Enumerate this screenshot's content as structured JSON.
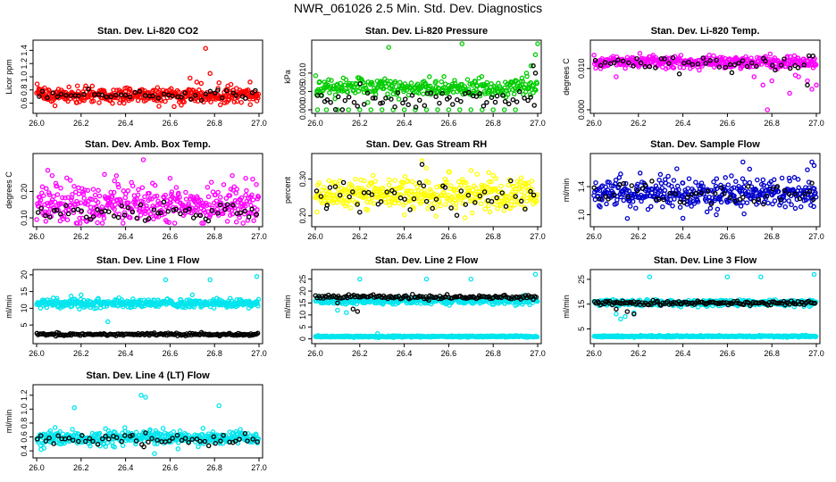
{
  "page": {
    "title": "NWR_061026  2.5 Min. Std. Dev. Diagnostics"
  },
  "chart_data": [
    {
      "type": "scatter",
      "title": "Stan. Dev. Li-820 CO2",
      "ylabel": "Licor ppm",
      "color": "#ff0000",
      "ref_color": "#000000",
      "xlim": [
        26.0,
        27.0
      ],
      "ylim": [
        0.5,
        1.5
      ],
      "xticks": [
        "26.0",
        "26.2",
        "26.4",
        "26.6",
        "26.8",
        "27.0"
      ],
      "yticks": [
        "0.6",
        "0.8",
        "1.0",
        "1.2",
        "1.4"
      ],
      "series": [
        {
          "base": 0.72,
          "spread": 0.06,
          "density": 1.0,
          "points": [
            [
              26.01,
              0.82
            ],
            [
              26.1,
              0.68
            ],
            [
              26.25,
              0.86
            ],
            [
              26.4,
              0.78
            ],
            [
              26.55,
              0.7
            ],
            [
              26.69,
              0.98
            ],
            [
              26.72,
              0.92
            ],
            [
              26.74,
              0.9
            ],
            [
              26.76,
              1.43
            ],
            [
              26.78,
              1.05
            ],
            [
              26.82,
              0.91
            ],
            [
              26.86,
              0.86
            ],
            [
              26.96,
              0.92
            ],
            [
              26.99,
              0.73
            ]
          ]
        },
        {
          "base": 0.72,
          "spread": 0.04,
          "density": 0.12,
          "ref": true,
          "points": []
        }
      ]
    },
    {
      "type": "scatter",
      "title": "Stan. Dev. Li-820 Pressure",
      "ylabel": "kPa",
      "color": "#00cc00",
      "ref_color": "#000000",
      "xlim": [
        26.0,
        27.0
      ],
      "ylim": [
        0.0,
        0.018
      ],
      "xticks": [
        "26.0",
        "26.2",
        "26.4",
        "26.6",
        "26.8",
        "27.0"
      ],
      "yticks": [
        "0.000",
        "0.005",
        "0.010"
      ],
      "series": [
        {
          "base": 0.006,
          "spread": 0.0012,
          "density": 0.8,
          "points": [
            [
              26.01,
              0.0
            ],
            [
              26.05,
              0.0
            ],
            [
              26.1,
              0.0
            ],
            [
              26.15,
              0.0
            ],
            [
              26.2,
              0.0
            ],
            [
              26.25,
              0.0
            ],
            [
              26.3,
              0.0
            ],
            [
              26.35,
              0.0
            ],
            [
              26.4,
              0.0
            ],
            [
              26.45,
              0.0
            ],
            [
              26.5,
              0.0
            ],
            [
              26.55,
              0.0
            ],
            [
              26.6,
              0.0
            ],
            [
              26.65,
              0.0
            ],
            [
              26.7,
              0.0
            ],
            [
              26.75,
              0.0
            ],
            [
              26.8,
              0.0
            ],
            [
              26.85,
              0.0
            ],
            [
              26.9,
              0.0
            ],
            [
              26.33,
              0.017
            ],
            [
              26.66,
              0.018
            ],
            [
              26.9,
              0.008
            ],
            [
              26.95,
              0.01
            ],
            [
              26.97,
              0.012
            ],
            [
              26.99,
              0.015
            ],
            [
              27.0,
              0.018
            ]
          ]
        },
        {
          "base": 0.003,
          "spread": 0.0015,
          "density": 0.15,
          "ref": true,
          "points": [
            [
              26.98,
              0.012
            ],
            [
              26.99,
              0.01
            ]
          ]
        }
      ]
    },
    {
      "type": "scatter",
      "title": "Stan. Dev. Li-820 Temp.",
      "ylabel": "degrees C",
      "color": "#ff00ff",
      "ref_color": "#000000",
      "xlim": [
        26.0,
        27.0
      ],
      "ylim": [
        0.0,
        0.016
      ],
      "xticks": [
        "26.0",
        "26.2",
        "26.4",
        "26.6",
        "26.8",
        "27.0"
      ],
      "yticks": [
        "0.000",
        "0.010"
      ],
      "series": [
        {
          "base": 0.0115,
          "spread": 0.0007,
          "density": 1.0,
          "points": [
            [
              26.03,
              0.01
            ],
            [
              26.1,
              0.008
            ],
            [
              26.66,
              0.01
            ],
            [
              26.72,
              0.008
            ],
            [
              26.74,
              0.011
            ],
            [
              26.76,
              0.006
            ],
            [
              26.78,
              0.0
            ],
            [
              26.8,
              0.007
            ],
            [
              26.84,
              0.011
            ],
            [
              26.88,
              0.004
            ],
            [
              26.92,
              0.008
            ],
            [
              26.96,
              0.007
            ],
            [
              26.98,
              0.005
            ],
            [
              27.0,
              0.006
            ]
          ]
        },
        {
          "base": 0.0112,
          "spread": 0.0008,
          "density": 0.12,
          "ref": true,
          "points": [
            [
              26.62,
              0.009
            ],
            [
              26.96,
              0.006
            ]
          ]
        }
      ]
    },
    {
      "type": "scatter",
      "title": "Stan. Dev. Amb. Box Temp.",
      "ylabel": "degrees C",
      "color": "#ff00ff",
      "ref_color": "#000000",
      "xlim": [
        26.0,
        27.0
      ],
      "ylim": [
        0.08,
        0.33
      ],
      "xticks": [
        "26.0",
        "26.2",
        "26.4",
        "26.6",
        "26.8",
        "27.0"
      ],
      "yticks": [
        "0.10",
        "0.20"
      ],
      "series": [
        {
          "base": 0.15,
          "spread": 0.035,
          "density": 1.0,
          "points": [
            [
              26.05,
              0.28
            ],
            [
              26.07,
              0.26
            ],
            [
              26.48,
              0.32
            ],
            [
              26.6,
              0.25
            ],
            [
              26.35,
              0.24
            ],
            [
              26.88,
              0.26
            ],
            [
              26.94,
              0.25
            ]
          ]
        },
        {
          "base": 0.12,
          "spread": 0.015,
          "density": 0.14,
          "ref": true,
          "points": []
        }
      ]
    },
    {
      "type": "scatter",
      "title": "Stan. Dev. Gas Stream RH",
      "ylabel": "percent",
      "color": "#ffff00",
      "ref_color": "#000000",
      "xlim": [
        26.0,
        27.0
      ],
      "ylim": [
        0.18,
        0.36
      ],
      "xticks": [
        "26.0",
        "26.2",
        "26.4",
        "26.6",
        "26.8",
        "27.0"
      ],
      "yticks": [
        "0.20",
        "0.30"
      ],
      "series": [
        {
          "base": 0.26,
          "spread": 0.022,
          "density": 1.0,
          "points": [
            [
              26.48,
              0.35
            ],
            [
              26.5,
              0.33
            ],
            [
              26.6,
              0.32
            ],
            [
              26.26,
              0.31
            ],
            [
              26.8,
              0.31
            ]
          ]
        },
        {
          "base": 0.25,
          "spread": 0.02,
          "density": 0.12,
          "ref": true,
          "points": [
            [
              26.48,
              0.34
            ],
            [
              26.2,
              0.21
            ],
            [
              26.05,
              0.22
            ]
          ]
        }
      ]
    },
    {
      "type": "scatter",
      "title": "Stan. Dev. Sample Flow",
      "ylabel": "ml/min",
      "color": "#0000cc",
      "ref_color": "#000000",
      "xlim": [
        26.0,
        27.0
      ],
      "ylim": [
        0.88,
        1.82
      ],
      "xticks": [
        "26.0",
        "26.2",
        "26.4",
        "26.6",
        "26.8",
        "27.0"
      ],
      "yticks": [
        "1.0",
        "1.4"
      ],
      "series": [
        {
          "base": 1.3,
          "spread": 0.1,
          "density": 1.0,
          "points": [
            [
              26.67,
              1.75
            ],
            [
              26.7,
              1.65
            ],
            [
              26.98,
              1.75
            ],
            [
              26.99,
              1.7
            ],
            [
              26.96,
              1.64
            ],
            [
              26.12,
              1.58
            ],
            [
              26.4,
              1.45
            ],
            [
              26.55,
              1.0
            ],
            [
              26.4,
              0.95
            ]
          ]
        },
        {
          "base": 1.3,
          "spread": 0.08,
          "density": 0.12,
          "ref": true,
          "points": [
            [
              26.98,
              1.45
            ]
          ]
        }
      ]
    },
    {
      "type": "scatter",
      "title": "Stan. Dev. Line 1 Flow",
      "ylabel": "ml/min",
      "color": "#00e5ee",
      "ref_color": "#000000",
      "xlim": [
        26.0,
        27.0
      ],
      "ylim": [
        0.5,
        20.5
      ],
      "xticks": [
        "26.0",
        "26.2",
        "26.4",
        "26.6",
        "26.8",
        "27.0"
      ],
      "yticks": [
        "5",
        "10",
        "15",
        "20"
      ],
      "series": [
        {
          "base": 11.5,
          "spread": 0.6,
          "density": 1.0,
          "points": [
            [
              26.32,
              6.0
            ],
            [
              26.58,
              18.5
            ],
            [
              26.78,
              18.5
            ],
            [
              26.99,
              19.5
            ],
            [
              26.2,
              14.0
            ],
            [
              26.7,
              14.0
            ]
          ]
        },
        {
          "base": 2.2,
          "spread": 0.2,
          "density": 0.45,
          "ref": true,
          "points": []
        }
      ]
    },
    {
      "type": "scatter",
      "title": "Stan. Dev. Line 2 Flow",
      "ylabel": "ml/min",
      "color": "#00e5ee",
      "ref_color": "#000000",
      "xlim": [
        26.0,
        27.0
      ],
      "ylim": [
        -0.5,
        27.5
      ],
      "xticks": [
        "26.0",
        "26.2",
        "26.4",
        "26.6",
        "26.8",
        "27.0"
      ],
      "yticks": [
        "0",
        "5",
        "10",
        "15",
        "20",
        "25"
      ],
      "series": [
        {
          "base": 16.0,
          "spread": 0.7,
          "density": 1.0,
          "points": [
            [
              26.1,
              12.0
            ],
            [
              26.14,
              11.0
            ],
            [
              26.2,
              25.0
            ],
            [
              26.5,
              25.0
            ],
            [
              26.7,
              25.0
            ],
            [
              26.99,
              27.0
            ],
            [
              26.9,
              14.0
            ]
          ]
        },
        {
          "base": 1.0,
          "spread": 0.15,
          "density": 1.0,
          "points": [
            [
              26.28,
              2.2
            ]
          ]
        },
        {
          "base": 17.5,
          "spread": 0.4,
          "density": 0.35,
          "ref": true,
          "points": [
            [
              26.1,
              15.0
            ],
            [
              26.17,
              12.5
            ],
            [
              26.19,
              11.5
            ]
          ]
        }
      ]
    },
    {
      "type": "scatter",
      "title": "Stan. Dev. Line 3 Flow",
      "ylabel": "ml/min",
      "color": "#00e5ee",
      "ref_color": "#000000",
      "xlim": [
        26.0,
        27.0
      ],
      "ylim": [
        0.5,
        27.5
      ],
      "xticks": [
        "26.0",
        "26.2",
        "26.4",
        "26.6",
        "26.8",
        "27.0"
      ],
      "yticks": [
        "5",
        "15",
        "25"
      ],
      "series": [
        {
          "base": 15.5,
          "spread": 0.6,
          "density": 1.0,
          "points": [
            [
              26.1,
              11.0
            ],
            [
              26.12,
              9.0
            ],
            [
              26.14,
              10.0
            ],
            [
              26.18,
              11.5
            ],
            [
              26.25,
              26.0
            ],
            [
              26.6,
              26.0
            ],
            [
              26.75,
              26.0
            ],
            [
              26.99,
              27.0
            ]
          ]
        },
        {
          "base": 2.0,
          "spread": 0.15,
          "density": 1.0,
          "points": []
        },
        {
          "base": 15.5,
          "spread": 0.4,
          "density": 0.35,
          "ref": true,
          "points": [
            [
              26.1,
              13.0
            ],
            [
              26.15,
              12.0
            ],
            [
              26.18,
              11.0
            ]
          ]
        }
      ]
    },
    {
      "type": "scatter",
      "title": "Stan. Dev. Line 4 (LT) Flow",
      "ylabel": "ml/min",
      "color": "#00e5ee",
      "ref_color": "#000000",
      "xlim": [
        26.0,
        27.0
      ],
      "ylim": [
        0.35,
        1.3
      ],
      "xticks": [
        "26.0",
        "26.2",
        "26.4",
        "26.6",
        "26.8",
        "27.0"
      ],
      "yticks": [
        "0.4",
        "0.6",
        "0.8",
        "1.0",
        "1.2"
      ],
      "series": [
        {
          "base": 0.58,
          "spread": 0.05,
          "density": 1.0,
          "points": [
            [
              26.17,
              1.02
            ],
            [
              26.47,
              1.2
            ],
            [
              26.49,
              1.17
            ],
            [
              26.82,
              1.05
            ],
            [
              26.53,
              0.36
            ],
            [
              26.02,
              0.42
            ],
            [
              26.31,
              0.72
            ]
          ]
        },
        {
          "base": 0.56,
          "spread": 0.04,
          "density": 0.14,
          "ref": true,
          "points": [
            [
              26.49,
              0.66
            ]
          ]
        }
      ]
    }
  ]
}
